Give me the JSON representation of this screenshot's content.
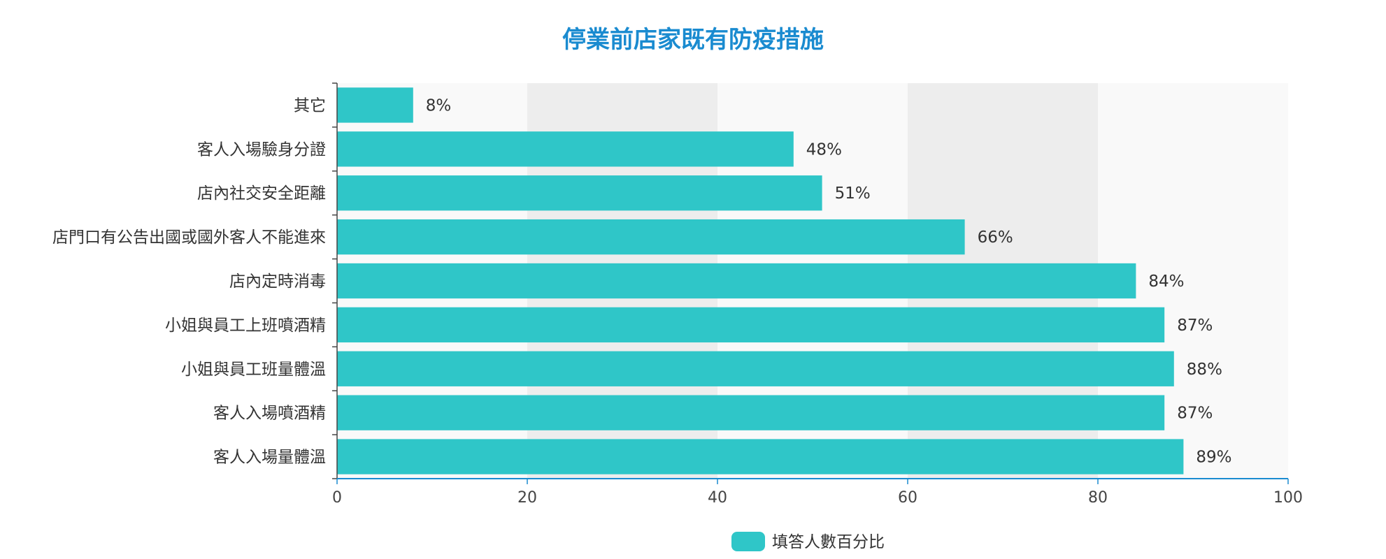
{
  "chart_data": {
    "type": "bar",
    "orientation": "horizontal",
    "title": "停業前店家既有防疫措施",
    "categories": [
      "其它",
      "客人入場驗身分證",
      "店內社交安全距離",
      "店門口有公告出國或國外客人不能進來",
      "店內定時消毒",
      "小姐與員工上班噴酒精",
      "小姐與員工班量體溫",
      "客人入場噴酒精",
      "客人入場量體溫"
    ],
    "series": [
      {
        "name": "填答人數百分比",
        "values": [
          8,
          48,
          51,
          66,
          84,
          87,
          88,
          87,
          89
        ],
        "labels": [
          "8%",
          "48%",
          "51%",
          "66%",
          "84%",
          "87%",
          "88%",
          "87%",
          "89%"
        ]
      }
    ],
    "xlim": [
      0,
      100
    ],
    "xticks": [
      "0",
      "20",
      "40",
      "60",
      "80",
      "100"
    ],
    "grid": "alternating vertical bands",
    "legend_position": "bottom-center",
    "colors": {
      "bar": "#2fc6c8",
      "title": "#1a8bd0",
      "axis": "#1a8bd0",
      "band_light": "#f9f9f9",
      "band_dark": "#ededed"
    }
  }
}
